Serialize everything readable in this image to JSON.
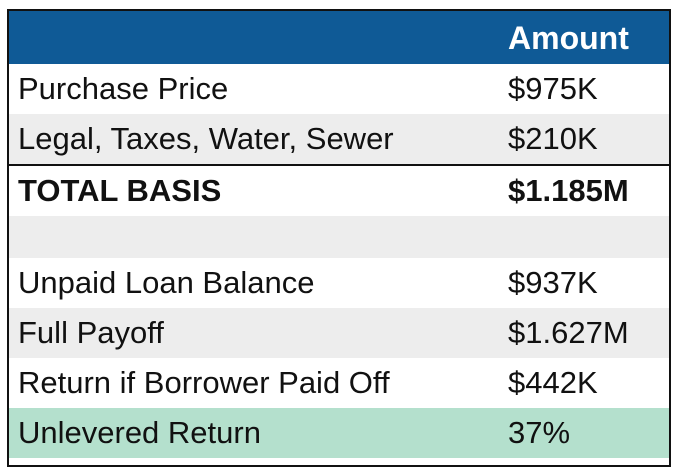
{
  "table": {
    "header": {
      "label": "",
      "value": "Amount"
    },
    "rows": [
      {
        "label": "Purchase Price",
        "value": "$975K"
      },
      {
        "label": "Legal, Taxes, Water, Sewer",
        "value": "$210K"
      },
      {
        "label": "TOTAL BASIS",
        "value": "$1.185M"
      },
      {
        "label": "",
        "value": ""
      },
      {
        "label": "Unpaid Loan Balance",
        "value": "$937K"
      },
      {
        "label": "Full Payoff",
        "value": "$1.627M"
      },
      {
        "label": "Return if Borrower Paid Off",
        "value": "$442K"
      },
      {
        "label": "Unlevered Return",
        "value": "37%"
      }
    ]
  },
  "colors": {
    "header_bg": "#0f5a96",
    "alt_row_bg": "#ededed",
    "highlight_bg": "#b4e0cd"
  }
}
